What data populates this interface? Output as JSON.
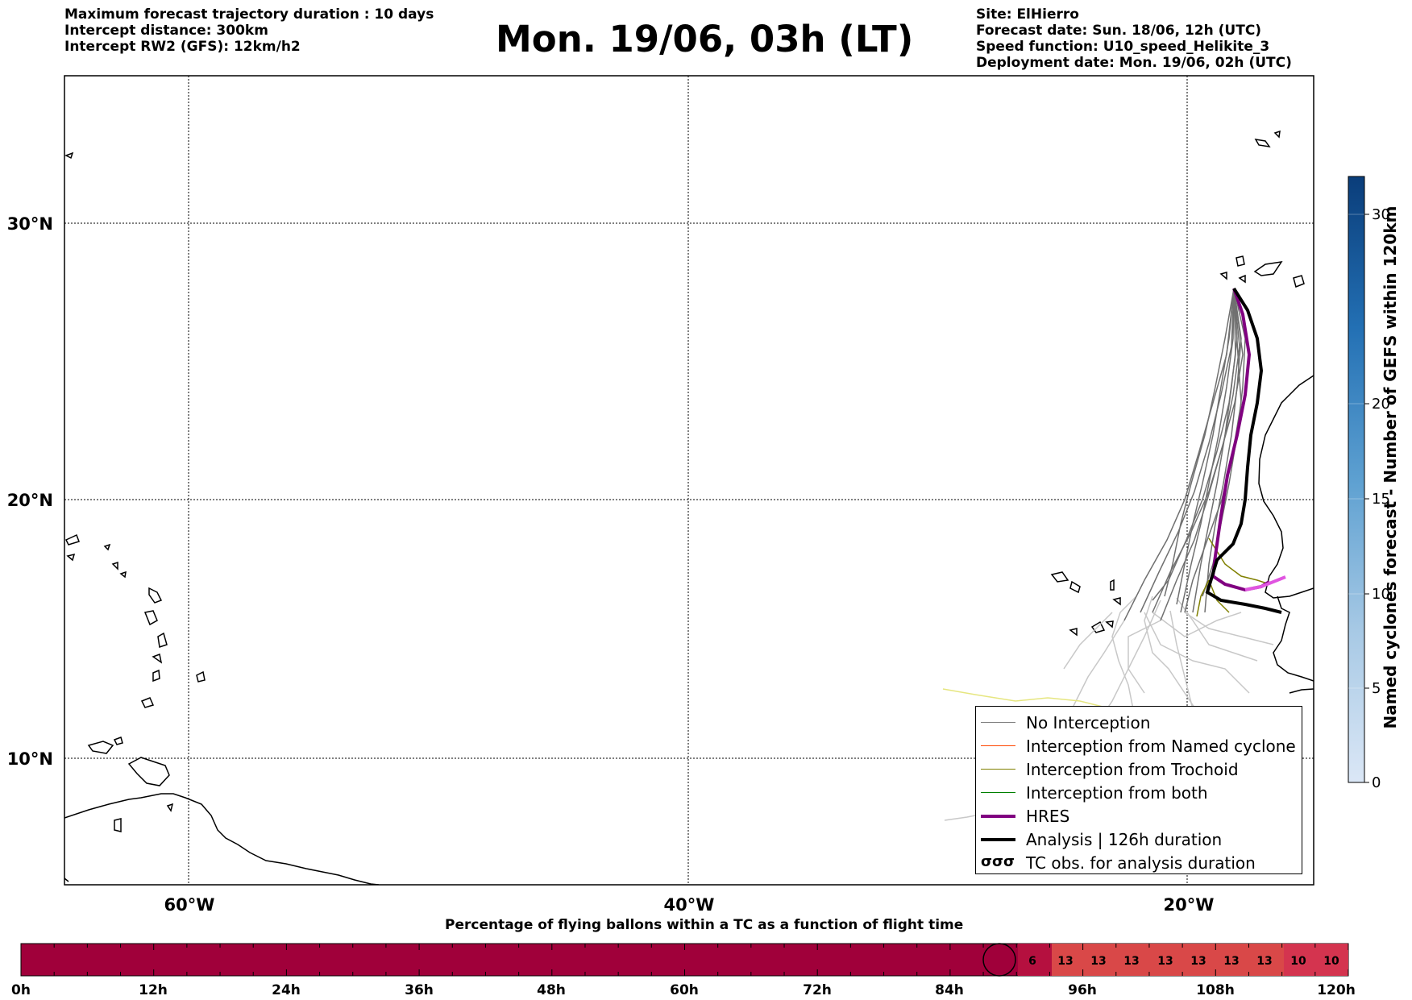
{
  "header_left": [
    "Maximum forecast trajectory duration : 10 days",
    "Intercept distance: 300km",
    "Intercept RW2 (GFS):  12km/h2"
  ],
  "title": "Mon. 19/06, 03h (LT)",
  "header_right": [
    "Site: ElHierro",
    "Forecast date: Sun. 18/06, 12h (UTC)",
    "Speed function: U10_speed_Helikite_3",
    "Deployment date: Mon. 19/06, 02h (UTC)"
  ],
  "map": {
    "lat_labels": [
      "30°N",
      "20°N",
      "10°N"
    ],
    "lon_labels": [
      "60°W",
      "40°W",
      "20°W"
    ]
  },
  "legend": [
    {
      "label": "No Interception",
      "color": "#808080",
      "style": "thin"
    },
    {
      "label": "Interception from Named cyclone",
      "color": "#ff4500",
      "style": "thin"
    },
    {
      "label": "Interception from Trochoid",
      "color": "#808000",
      "style": "thin"
    },
    {
      "label": "Interception from both",
      "color": "#008000",
      "style": "thin"
    },
    {
      "label": "HRES",
      "color": "#800080",
      "style": "thick"
    },
    {
      "label": "Analysis | 126h duration",
      "color": "#000000",
      "style": "thick"
    },
    {
      "label": "TC obs. for analysis duration",
      "color": "#000000",
      "style": "symbol"
    }
  ],
  "colorbar": {
    "title": "Named cyclones forecast - Number of GEFS within 120km",
    "ticks": [
      "0",
      "5",
      "10",
      "15",
      "20",
      "30"
    ]
  },
  "bottom_bar": {
    "title": "Percentage of flying ballons within a TC as a function of flight time",
    "time_ticks": [
      "0h",
      "12h",
      "24h",
      "36h",
      "48h",
      "60h",
      "72h",
      "84h",
      "96h",
      "108h",
      "120h"
    ],
    "cell_values": [
      "6",
      "13",
      "13",
      "13",
      "13",
      "13",
      "13",
      "13",
      "10",
      "10"
    ]
  }
}
